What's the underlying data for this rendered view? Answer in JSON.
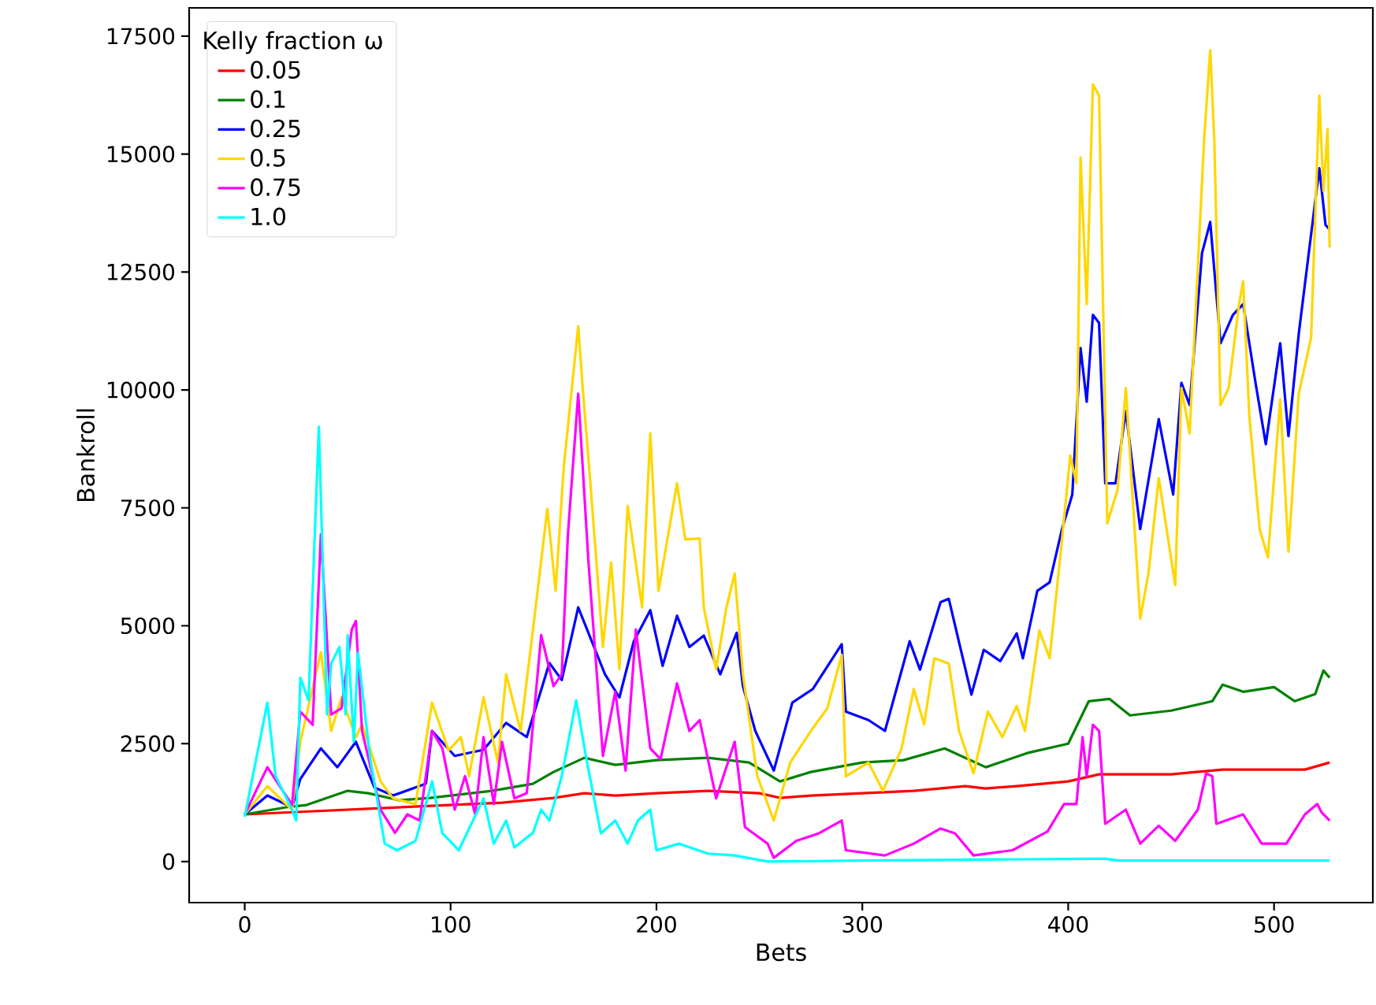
{
  "chart_data": {
    "type": "line",
    "xlabel": "Bets",
    "ylabel": "Bankroll",
    "legend_title": "Kelly fraction ω",
    "legend": "top left",
    "xlim": [
      -27,
      548
    ],
    "ylim": [
      -870,
      18100
    ],
    "xticks": [
      0,
      100,
      200,
      300,
      400,
      500
    ],
    "yticks": [
      0,
      2500,
      5000,
      7500,
      10000,
      12500,
      15000,
      17500
    ],
    "series": [
      {
        "name": "0.05",
        "color": "#ff0000",
        "x": [
          0,
          25,
          50,
          75,
          100,
          125,
          150,
          165,
          180,
          200,
          225,
          250,
          260,
          275,
          300,
          325,
          350,
          360,
          375,
          400,
          415,
          425,
          450,
          475,
          500,
          515,
          527
        ],
        "values": [
          1000,
          1050,
          1100,
          1150,
          1200,
          1250,
          1350,
          1450,
          1400,
          1450,
          1500,
          1450,
          1350,
          1400,
          1450,
          1500,
          1600,
          1550,
          1600,
          1700,
          1850,
          1850,
          1850,
          1950,
          1950,
          1950,
          2100
        ]
      },
      {
        "name": "0.1",
        "color": "#008000",
        "x": [
          0,
          20,
          30,
          40,
          50,
          60,
          75,
          90,
          100,
          120,
          140,
          150,
          165,
          180,
          200,
          225,
          245,
          260,
          275,
          300,
          320,
          340,
          360,
          380,
          400,
          410,
          420,
          430,
          450,
          470,
          475,
          485,
          500,
          510,
          520,
          524,
          527
        ],
        "values": [
          1000,
          1150,
          1200,
          1350,
          1500,
          1450,
          1300,
          1350,
          1400,
          1500,
          1650,
          1900,
          2200,
          2050,
          2150,
          2200,
          2100,
          1700,
          1900,
          2100,
          2150,
          2400,
          2000,
          2300,
          2500,
          3400,
          3450,
          3100,
          3200,
          3400,
          3750,
          3600,
          3700,
          3400,
          3550,
          4050,
          3900
        ]
      },
      {
        "name": "0.25",
        "color": "#0000ff",
        "x": [
          0,
          11,
          23,
          27,
          37,
          45,
          54,
          63,
          72,
          88,
          91,
          102,
          116,
          127,
          137,
          148,
          154,
          162,
          175,
          182,
          189,
          197,
          203,
          210,
          216,
          223,
          231,
          239,
          242,
          248,
          257,
          266,
          276,
          290,
          292,
          303,
          311,
          323,
          328,
          338,
          342,
          353,
          359,
          367,
          375,
          378,
          385,
          391,
          397,
          402,
          406,
          409,
          412,
          415,
          418,
          423,
          428,
          435,
          444,
          451,
          455,
          459,
          465,
          469,
          474,
          480,
          485,
          491,
          496,
          503,
          507,
          512,
          522,
          525,
          527
        ],
        "values": [
          1000,
          1400,
          1150,
          1750,
          2400,
          2000,
          2540,
          1570,
          1400,
          1650,
          2770,
          2240,
          2370,
          2940,
          2640,
          4210,
          3850,
          5390,
          3970,
          3480,
          4670,
          5330,
          4150,
          5210,
          4550,
          4790,
          3970,
          4850,
          3720,
          2770,
          1930,
          3370,
          3660,
          4610,
          3180,
          3000,
          2770,
          4670,
          4070,
          5500,
          5570,
          3540,
          4490,
          4250,
          4840,
          4310,
          5740,
          5920,
          7050,
          7780,
          10890,
          9750,
          11590,
          11420,
          8020,
          8020,
          9550,
          7050,
          9380,
          7780,
          10150,
          9680,
          12900,
          13560,
          10990,
          11590,
          11820,
          10150,
          8850,
          10990,
          9020,
          11190,
          14700,
          13500,
          13400
        ]
      },
      {
        "name": "0.5",
        "color": "#ffd700",
        "x": [
          0,
          11,
          23,
          27,
          37,
          42,
          47,
          54,
          57,
          66,
          72,
          83,
          91,
          99,
          105,
          109,
          116,
          123,
          127,
          134,
          141,
          147,
          151,
          155,
          162,
          164,
          168,
          174,
          178,
          182,
          186,
          193,
          197,
          201,
          210,
          214,
          221,
          223,
          229,
          234,
          238,
          242,
          249,
          257,
          265,
          275,
          283,
          290,
          292,
          303,
          310,
          319,
          325,
          330,
          335,
          342,
          347,
          354,
          361,
          368,
          375,
          379,
          386,
          391,
          397,
          401,
          404,
          406,
          409,
          412,
          415,
          419,
          424,
          428,
          435,
          439,
          444,
          452,
          455,
          459,
          466,
          469,
          471,
          474,
          478,
          483,
          485,
          488,
          493,
          497,
          503,
          507,
          512,
          518,
          522,
          524,
          526,
          527
        ],
        "values": [
          1000,
          1600,
          1100,
          2540,
          4440,
          2770,
          3480,
          2640,
          2910,
          1700,
          1340,
          1220,
          3370,
          2360,
          2640,
          1810,
          3480,
          2100,
          3970,
          2770,
          5270,
          7480,
          5740,
          8380,
          11350,
          10150,
          7970,
          4550,
          6340,
          4080,
          7540,
          5390,
          9080,
          5740,
          8020,
          6830,
          6850,
          5390,
          4080,
          5390,
          6110,
          3970,
          1810,
          870,
          2100,
          2770,
          3250,
          4380,
          1810,
          2100,
          1500,
          2390,
          3660,
          2910,
          4310,
          4200,
          2770,
          1870,
          3180,
          2640,
          3300,
          2770,
          4900,
          4310,
          6830,
          8610,
          8020,
          14930,
          11820,
          16480,
          16240,
          7170,
          7890,
          10040,
          5150,
          6110,
          8130,
          5860,
          10040,
          9080,
          15290,
          17200,
          15290,
          9680,
          10040,
          11820,
          12300,
          9440,
          7050,
          6450,
          9800,
          6570,
          9920,
          11110,
          16240,
          14220,
          15530,
          13020
        ]
      },
      {
        "name": "0.75",
        "color": "#ff00ff",
        "x": [
          0,
          11,
          23,
          27,
          33,
          37,
          42,
          47,
          52,
          54,
          57,
          66,
          73,
          79,
          85,
          91,
          96,
          102,
          107,
          112,
          116,
          121,
          125,
          131,
          137,
          144,
          150,
          154,
          157,
          162,
          167,
          174,
          180,
          185,
          190,
          197,
          202,
          210,
          216,
          221,
          229,
          238,
          243,
          254,
          257,
          268,
          279,
          290,
          292,
          311,
          325,
          338,
          345,
          354,
          373,
          390,
          398,
          404,
          407,
          409,
          412,
          415,
          418,
          428,
          435,
          444,
          452,
          463,
          467,
          470,
          472,
          485,
          494,
          506,
          515,
          521,
          523,
          527
        ],
        "values": [
          1000,
          2000,
          1200,
          3180,
          2900,
          6940,
          3120,
          3250,
          4920,
          5100,
          2770,
          1100,
          610,
          1000,
          870,
          2770,
          2400,
          1100,
          1810,
          1000,
          2640,
          1220,
          2540,
          1340,
          1450,
          4800,
          3720,
          3970,
          6940,
          9920,
          6340,
          2240,
          3600,
          1930,
          4920,
          2400,
          2170,
          3780,
          2770,
          3000,
          1340,
          2540,
          730,
          380,
          80,
          440,
          600,
          870,
          240,
          130,
          380,
          700,
          600,
          130,
          240,
          640,
          1220,
          1220,
          2640,
          1810,
          2900,
          2770,
          800,
          1100,
          380,
          760,
          440,
          1100,
          1870,
          1810,
          800,
          1000,
          380,
          380,
          1000,
          1220,
          1050,
          870
        ]
      },
      {
        "name": "1.0",
        "color": "#00ffff",
        "x": [
          0,
          11,
          15,
          23,
          25,
          27,
          31,
          36,
          40,
          42,
          46,
          49,
          50,
          53,
          55,
          61,
          68,
          74,
          83,
          91,
          96,
          104,
          116,
          121,
          127,
          131,
          140,
          144,
          148,
          154,
          161,
          166,
          173,
          180,
          186,
          191,
          197,
          200,
          211,
          225,
          238,
          254,
          300,
          410,
          418,
          425,
          527
        ],
        "values": [
          950,
          3370,
          1810,
          1100,
          870,
          3900,
          3420,
          9220,
          3120,
          4200,
          4550,
          3120,
          4800,
          2540,
          4430,
          2170,
          380,
          240,
          440,
          1700,
          600,
          240,
          1340,
          380,
          870,
          300,
          610,
          1100,
          870,
          1810,
          3420,
          2170,
          600,
          870,
          380,
          870,
          1100,
          240,
          380,
          170,
          130,
          0,
          20,
          60,
          60,
          20,
          20
        ]
      }
    ]
  }
}
